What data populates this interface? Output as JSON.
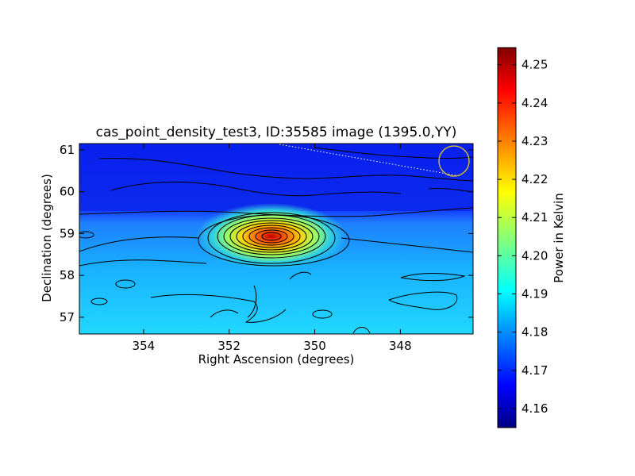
{
  "chart_data": {
    "type": "heatmap",
    "title": "cas_point_density_test3, ID:35585 image (1395.0,YY)",
    "xlabel": "Right Ascension (degrees)",
    "ylabel": "Declination (degrees)",
    "xlim": [
      355.5,
      346.3
    ],
    "ylim": [
      56.6,
      61.15
    ],
    "x_ticks": [
      354,
      352,
      350,
      348
    ],
    "x_tick_labels": [
      "354",
      "352",
      "350",
      "348"
    ],
    "y_ticks": [
      57,
      58,
      59,
      60,
      61
    ],
    "y_tick_labels": [
      "57",
      "58",
      "59",
      "60",
      "61"
    ],
    "colorbar": {
      "label": "Power in Kelvin",
      "range": [
        4.155,
        4.2545
      ],
      "ticks": [
        4.16,
        4.17,
        4.18,
        4.19,
        4.2,
        4.21,
        4.22,
        4.23,
        4.24,
        4.25
      ],
      "tick_labels": [
        "4.16",
        "4.17",
        "4.18",
        "4.19",
        "4.20",
        "4.21",
        "4.22",
        "4.23",
        "4.24",
        "4.25"
      ]
    },
    "colormap": "jet",
    "background_value": 4.168,
    "source_peak": {
      "ra": 350.9,
      "dec": 58.85,
      "value": 4.25
    },
    "contour_color": "#000000",
    "beam_circle": {
      "ra": 346.8,
      "dec": 60.65,
      "color": "#c8b43c"
    },
    "dotted_line": {
      "from": [
        350.8,
        61.1
      ],
      "to": [
        346.6,
        60.3
      ],
      "color": "#ffffff"
    },
    "grid": false
  }
}
